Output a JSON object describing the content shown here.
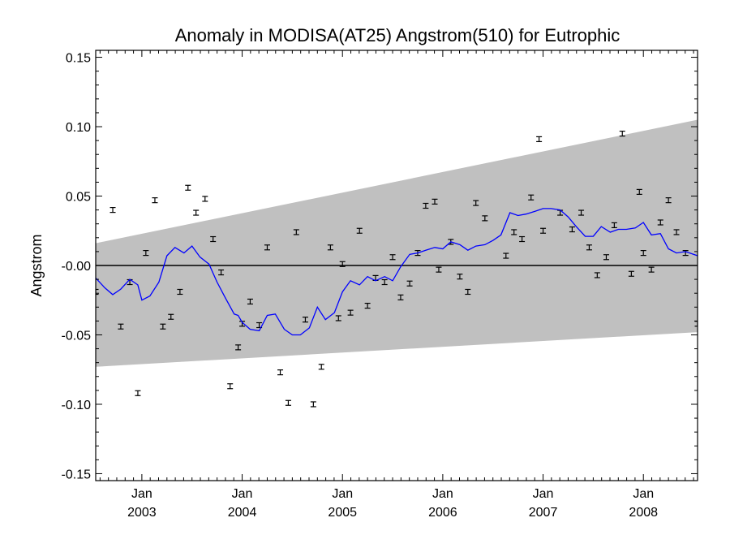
{
  "chart_data": {
    "type": "line",
    "title": "Anomaly in MODISA(AT25) Angstrom(510) for Eutrophic",
    "xlabel": "",
    "ylabel": "Angstrom",
    "ylim": [
      -0.155,
      0.155
    ],
    "xlim": [
      2002.54,
      2008.54
    ],
    "y_ticks": [
      0.15,
      0.1,
      0.05,
      0.0,
      -0.05,
      -0.1,
      -0.15
    ],
    "y_tick_labels": [
      "0.15",
      "0.10",
      "0.05",
      "-0.00",
      "-0.05",
      "-0.10",
      "-0.15"
    ],
    "x_ticks": [
      {
        "x": 2003.0,
        "month": "Jan",
        "year": "2003"
      },
      {
        "x": 2004.0,
        "month": "Jan",
        "year": "2004"
      },
      {
        "x": 2005.0,
        "month": "Jan",
        "year": "2005"
      },
      {
        "x": 2006.0,
        "month": "Jan",
        "year": "2006"
      },
      {
        "x": 2007.0,
        "month": "Jan",
        "year": "2007"
      },
      {
        "x": 2008.0,
        "month": "Jan",
        "year": "2008"
      }
    ],
    "grid": false,
    "zero_line": 0.0,
    "band": {
      "color": "#c0c0c0",
      "upper": [
        [
          2002.54,
          0.016
        ],
        [
          2008.54,
          0.105
        ]
      ],
      "lower": [
        [
          2002.54,
          -0.073
        ],
        [
          2008.54,
          -0.048
        ]
      ]
    },
    "series": [
      {
        "style": "errorbar",
        "color": "#000000",
        "points": [
          [
            2002.54,
            -0.019
          ],
          [
            2002.71,
            0.04
          ],
          [
            2002.79,
            -0.044
          ],
          [
            2002.88,
            -0.012
          ],
          [
            2002.96,
            -0.092
          ],
          [
            2003.04,
            0.009
          ],
          [
            2003.13,
            0.047
          ],
          [
            2003.21,
            -0.044
          ],
          [
            2003.29,
            -0.037
          ],
          [
            2003.38,
            -0.019
          ],
          [
            2003.46,
            0.056
          ],
          [
            2003.54,
            0.038
          ],
          [
            2003.63,
            0.048
          ],
          [
            2003.71,
            0.019
          ],
          [
            2003.79,
            -0.005
          ],
          [
            2003.88,
            -0.087
          ],
          [
            2003.96,
            -0.059
          ],
          [
            2004.0,
            -0.042
          ],
          [
            2004.08,
            -0.026
          ],
          [
            2004.17,
            -0.043
          ],
          [
            2004.25,
            0.013
          ],
          [
            2004.38,
            -0.077
          ],
          [
            2004.46,
            -0.099
          ],
          [
            2004.54,
            0.024
          ],
          [
            2004.63,
            -0.039
          ],
          [
            2004.71,
            -0.1
          ],
          [
            2004.79,
            -0.073
          ],
          [
            2004.88,
            0.013
          ],
          [
            2004.96,
            -0.038
          ],
          [
            2005.0,
            0.001
          ],
          [
            2005.08,
            -0.034
          ],
          [
            2005.17,
            0.025
          ],
          [
            2005.25,
            -0.029
          ],
          [
            2005.33,
            -0.009
          ],
          [
            2005.42,
            -0.012
          ],
          [
            2005.5,
            0.006
          ],
          [
            2005.58,
            -0.023
          ],
          [
            2005.67,
            -0.013
          ],
          [
            2005.75,
            0.009
          ],
          [
            2005.83,
            0.043
          ],
          [
            2005.92,
            0.046
          ],
          [
            2005.96,
            -0.003
          ],
          [
            2006.08,
            0.017
          ],
          [
            2006.17,
            -0.008
          ],
          [
            2006.25,
            -0.019
          ],
          [
            2006.33,
            0.045
          ],
          [
            2006.42,
            0.034
          ],
          [
            2006.63,
            0.007
          ],
          [
            2006.71,
            0.024
          ],
          [
            2006.79,
            0.019
          ],
          [
            2006.88,
            0.049
          ],
          [
            2006.96,
            0.091
          ],
          [
            2007.0,
            0.025
          ],
          [
            2007.17,
            0.038
          ],
          [
            2007.29,
            0.026
          ],
          [
            2007.38,
            0.038
          ],
          [
            2007.46,
            0.013
          ],
          [
            2007.54,
            -0.007
          ],
          [
            2007.63,
            0.006
          ],
          [
            2007.71,
            0.029
          ],
          [
            2007.79,
            0.095
          ],
          [
            2007.88,
            -0.006
          ],
          [
            2007.96,
            0.053
          ],
          [
            2008.0,
            0.009
          ],
          [
            2008.08,
            -0.003
          ],
          [
            2008.17,
            0.031
          ],
          [
            2008.25,
            0.047
          ],
          [
            2008.33,
            0.024
          ],
          [
            2008.42,
            0.009
          ],
          [
            2008.54,
            -0.042
          ]
        ]
      },
      {
        "style": "line",
        "color": "#0000ff",
        "points": [
          [
            2002.54,
            -0.009
          ],
          [
            2002.63,
            -0.016
          ],
          [
            2002.71,
            -0.021
          ],
          [
            2002.79,
            -0.017
          ],
          [
            2002.88,
            -0.01
          ],
          [
            2002.96,
            -0.014
          ],
          [
            2003.0,
            -0.025
          ],
          [
            2003.08,
            -0.022
          ],
          [
            2003.17,
            -0.012
          ],
          [
            2003.25,
            0.007
          ],
          [
            2003.33,
            0.013
          ],
          [
            2003.42,
            0.009
          ],
          [
            2003.5,
            0.014
          ],
          [
            2003.58,
            0.006
          ],
          [
            2003.67,
            0.001
          ],
          [
            2003.75,
            -0.012
          ],
          [
            2003.83,
            -0.023
          ],
          [
            2003.92,
            -0.035
          ],
          [
            2003.96,
            -0.036
          ],
          [
            2004.0,
            -0.041
          ],
          [
            2004.08,
            -0.046
          ],
          [
            2004.17,
            -0.047
          ],
          [
            2004.25,
            -0.036
          ],
          [
            2004.33,
            -0.035
          ],
          [
            2004.42,
            -0.046
          ],
          [
            2004.5,
            -0.05
          ],
          [
            2004.58,
            -0.05
          ],
          [
            2004.67,
            -0.045
          ],
          [
            2004.75,
            -0.03
          ],
          [
            2004.83,
            -0.039
          ],
          [
            2004.92,
            -0.034
          ],
          [
            2005.0,
            -0.019
          ],
          [
            2005.08,
            -0.011
          ],
          [
            2005.17,
            -0.014
          ],
          [
            2005.25,
            -0.008
          ],
          [
            2005.33,
            -0.011
          ],
          [
            2005.42,
            -0.008
          ],
          [
            2005.5,
            -0.011
          ],
          [
            2005.58,
            -0.001
          ],
          [
            2005.67,
            0.008
          ],
          [
            2005.75,
            0.009
          ],
          [
            2005.83,
            0.011
          ],
          [
            2005.92,
            0.013
          ],
          [
            2006.0,
            0.012
          ],
          [
            2006.08,
            0.017
          ],
          [
            2006.17,
            0.015
          ],
          [
            2006.25,
            0.011
          ],
          [
            2006.33,
            0.014
          ],
          [
            2006.42,
            0.015
          ],
          [
            2006.5,
            0.018
          ],
          [
            2006.58,
            0.022
          ],
          [
            2006.67,
            0.038
          ],
          [
            2006.75,
            0.036
          ],
          [
            2006.83,
            0.037
          ],
          [
            2006.92,
            0.039
          ],
          [
            2007.0,
            0.041
          ],
          [
            2007.08,
            0.041
          ],
          [
            2007.17,
            0.04
          ],
          [
            2007.25,
            0.035
          ],
          [
            2007.33,
            0.028
          ],
          [
            2007.42,
            0.021
          ],
          [
            2007.5,
            0.021
          ],
          [
            2007.58,
            0.028
          ],
          [
            2007.67,
            0.024
          ],
          [
            2007.75,
            0.026
          ],
          [
            2007.83,
            0.026
          ],
          [
            2007.92,
            0.027
          ],
          [
            2008.0,
            0.031
          ],
          [
            2008.08,
            0.022
          ],
          [
            2008.17,
            0.023
          ],
          [
            2008.25,
            0.012
          ],
          [
            2008.33,
            0.009
          ],
          [
            2008.42,
            0.01
          ],
          [
            2008.54,
            0.007
          ]
        ]
      }
    ]
  }
}
